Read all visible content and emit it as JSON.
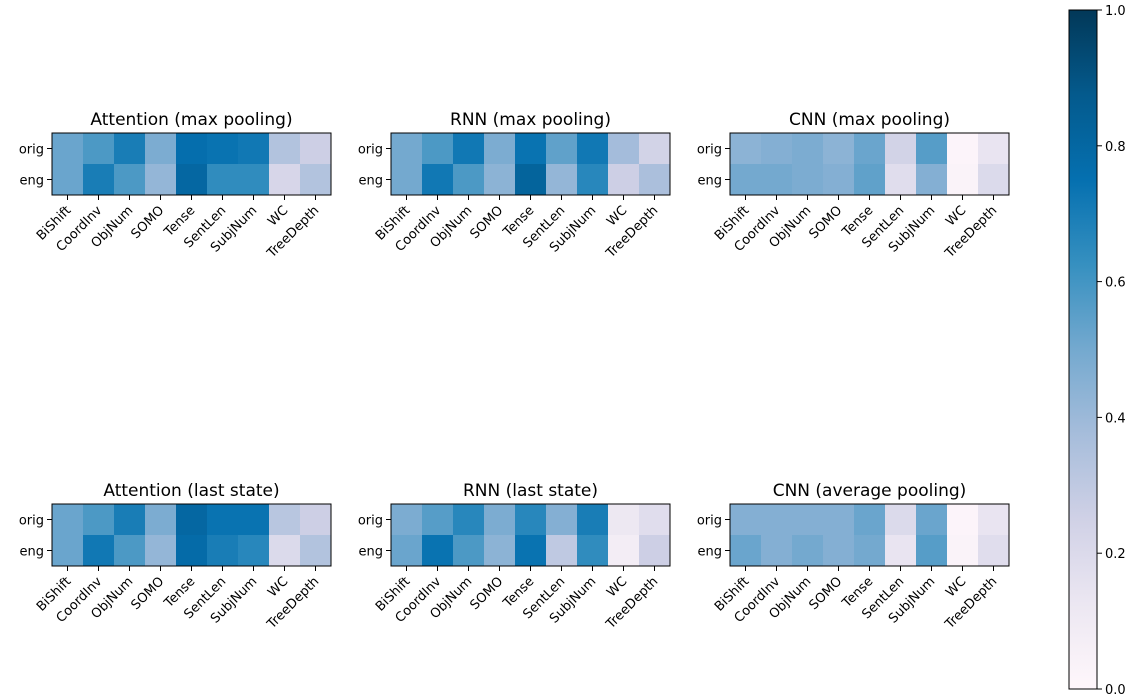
{
  "chart_data": [
    {
      "type": "heatmap",
      "title": "Attention (max pooling)",
      "rows": [
        "orig",
        "eng"
      ],
      "columns": [
        "BiShift",
        "CoordInv",
        "ObjNum",
        "SOMO",
        "Tense",
        "SentLen",
        "SubjNum",
        "WC",
        "TreeDepth"
      ],
      "values": [
        [
          0.52,
          0.58,
          0.7,
          0.48,
          0.76,
          0.74,
          0.72,
          0.34,
          0.26
        ],
        [
          0.52,
          0.7,
          0.58,
          0.42,
          0.8,
          0.64,
          0.64,
          0.22,
          0.34
        ]
      ]
    },
    {
      "type": "heatmap",
      "title": "RNN (max pooling)",
      "rows": [
        "orig",
        "eng"
      ],
      "columns": [
        "BiShift",
        "CoordInv",
        "ObjNum",
        "SOMO",
        "Tense",
        "SentLen",
        "SubjNum",
        "WC",
        "TreeDepth"
      ],
      "values": [
        [
          0.5,
          0.58,
          0.72,
          0.48,
          0.74,
          0.54,
          0.72,
          0.38,
          0.24
        ],
        [
          0.5,
          0.72,
          0.58,
          0.44,
          0.82,
          0.42,
          0.66,
          0.26,
          0.36
        ]
      ]
    },
    {
      "type": "heatmap",
      "title": "CNN (max pooling)",
      "rows": [
        "orig",
        "eng"
      ],
      "columns": [
        "BiShift",
        "CoordInv",
        "ObjNum",
        "SOMO",
        "Tense",
        "SentLen",
        "SubjNum",
        "WC",
        "TreeDepth"
      ],
      "values": [
        [
          0.44,
          0.46,
          0.48,
          0.44,
          0.52,
          0.24,
          0.56,
          0.02,
          0.14
        ],
        [
          0.5,
          0.5,
          0.48,
          0.46,
          0.54,
          0.18,
          0.46,
          0.03,
          0.2
        ]
      ]
    },
    {
      "type": "heatmap",
      "title": "Attention (last state)",
      "rows": [
        "orig",
        "eng"
      ],
      "columns": [
        "BiShift",
        "CoordInv",
        "ObjNum",
        "SOMO",
        "Tense",
        "SentLen",
        "SubjNum",
        "WC",
        "TreeDepth"
      ],
      "values": [
        [
          0.52,
          0.58,
          0.7,
          0.48,
          0.8,
          0.74,
          0.74,
          0.32,
          0.26
        ],
        [
          0.52,
          0.72,
          0.58,
          0.42,
          0.78,
          0.7,
          0.66,
          0.2,
          0.34
        ]
      ]
    },
    {
      "type": "heatmap",
      "title": "RNN (last state)",
      "rows": [
        "orig",
        "eng"
      ],
      "columns": [
        "BiShift",
        "CoordInv",
        "ObjNum",
        "SOMO",
        "Tense",
        "SentLen",
        "SubjNum",
        "WC",
        "TreeDepth"
      ],
      "values": [
        [
          0.48,
          0.56,
          0.66,
          0.48,
          0.66,
          0.46,
          0.7,
          0.12,
          0.18
        ],
        [
          0.52,
          0.74,
          0.58,
          0.44,
          0.74,
          0.3,
          0.64,
          0.08,
          0.26
        ]
      ]
    },
    {
      "type": "heatmap",
      "title": "CNN (average pooling)",
      "rows": [
        "orig",
        "eng"
      ],
      "columns": [
        "BiShift",
        "CoordInv",
        "ObjNum",
        "SOMO",
        "Tense",
        "SentLen",
        "SubjNum",
        "WC",
        "TreeDepth"
      ],
      "values": [
        [
          0.46,
          0.46,
          0.46,
          0.46,
          0.52,
          0.2,
          0.52,
          0.02,
          0.14
        ],
        [
          0.52,
          0.46,
          0.5,
          0.46,
          0.5,
          0.14,
          0.56,
          0.03,
          0.18
        ]
      ]
    }
  ],
  "colorbar": {
    "min": 0.0,
    "max": 1.0,
    "ticks": [
      "0.0",
      "0.2",
      "0.4",
      "0.6",
      "0.8",
      "1.0"
    ],
    "colormap": "PuBu",
    "color_stops": [
      "#fff7fb",
      "#ece7f2",
      "#d0d1e6",
      "#a6bddb",
      "#74a9cf",
      "#3690c0",
      "#0570b0",
      "#045a8d",
      "#023858"
    ]
  }
}
